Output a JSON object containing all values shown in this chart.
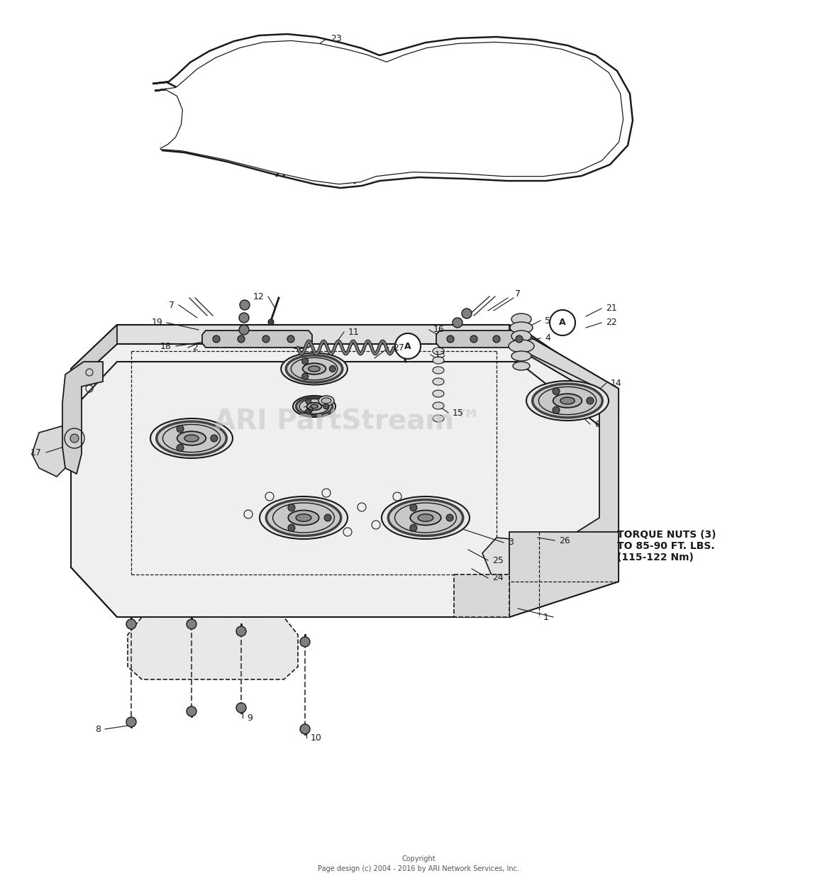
{
  "bg_color": "#ffffff",
  "line_color": "#1a1a1a",
  "watermark_text": "ARI PartStream™",
  "watermark_color": "#c8c8c8",
  "copyright_text": "Copyright\nPage design (c) 2004 - 2016 by ARI Network Services, Inc.",
  "torque_text": "TORQUE NUTS (3)\nTO 85-90 FT. LBS.\n(115-122 Nm)"
}
